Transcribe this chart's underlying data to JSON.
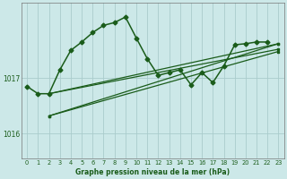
{
  "title": "Graphe pression niveau de la mer (hPa)",
  "bg_color": "#cce8e8",
  "plot_bg_color": "#cce8e8",
  "grid_color": "#aacccc",
  "line_color": "#1a5c1a",
  "xlim": [
    -0.5,
    23.5
  ],
  "ylim": [
    1015.55,
    1018.35
  ],
  "yticks": [
    1016,
    1017
  ],
  "xticks": [
    0,
    1,
    2,
    3,
    4,
    5,
    6,
    7,
    8,
    9,
    10,
    11,
    12,
    13,
    14,
    15,
    16,
    17,
    18,
    19,
    20,
    21,
    22,
    23
  ],
  "series_main": {
    "x": [
      0,
      1,
      2,
      3,
      4,
      5,
      6,
      7,
      8,
      9,
      10,
      11,
      12,
      13,
      14,
      15,
      16,
      17,
      18,
      19,
      20,
      21,
      22
    ],
    "y": [
      1016.85,
      1016.72,
      1016.72,
      1017.15,
      1017.5,
      1017.65,
      1017.82,
      1017.95,
      1018.0,
      1018.1,
      1017.72,
      1017.35,
      1017.05,
      1017.1,
      1017.15,
      1016.88,
      1017.1,
      1016.92,
      1017.22,
      1017.6,
      1017.62,
      1017.65,
      1017.65
    ],
    "marker": "D",
    "markersize": 2.5,
    "linewidth": 1.1
  },
  "trend_lines": [
    {
      "x": [
        2,
        23
      ],
      "y": [
        1016.72,
        1017.62
      ],
      "marker": "s",
      "markersize": 2.0,
      "linewidth": 0.9
    },
    {
      "x": [
        2,
        23
      ],
      "y": [
        1016.72,
        1017.52
      ],
      "marker": "s",
      "markersize": 2.0,
      "linewidth": 0.9
    },
    {
      "x": [
        2,
        23
      ],
      "y": [
        1016.32,
        1017.62
      ],
      "marker": "s",
      "markersize": 2.0,
      "linewidth": 0.9
    },
    {
      "x": [
        2,
        23
      ],
      "y": [
        1016.32,
        1017.48
      ],
      "marker": "s",
      "markersize": 2.0,
      "linewidth": 0.9
    }
  ]
}
